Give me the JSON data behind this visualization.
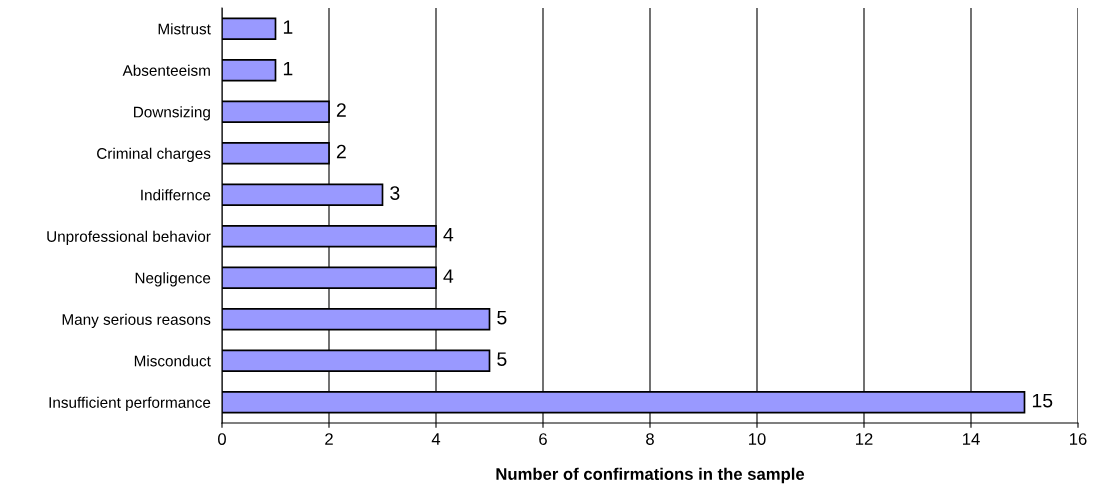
{
  "chart_data": {
    "type": "bar",
    "orientation": "horizontal",
    "xlabel": "Number of confirmations in the sample",
    "categories": [
      "Mistrust",
      "Absenteeism",
      "Downsizing",
      "Criminal charges",
      "Indiffernce",
      "Unprofessional behavior",
      "Negligence",
      "Many serious reasons",
      "Misconduct",
      "Insufficient performance"
    ],
    "values": [
      1,
      1,
      2,
      2,
      3,
      4,
      4,
      5,
      5,
      15
    ],
    "color": "#9999ff",
    "xlim": [
      0,
      16
    ],
    "xticks": [
      0,
      2,
      4,
      6,
      8,
      10,
      12,
      14,
      16
    ],
    "grid": "x",
    "data_labels": true,
    "legend": false
  }
}
